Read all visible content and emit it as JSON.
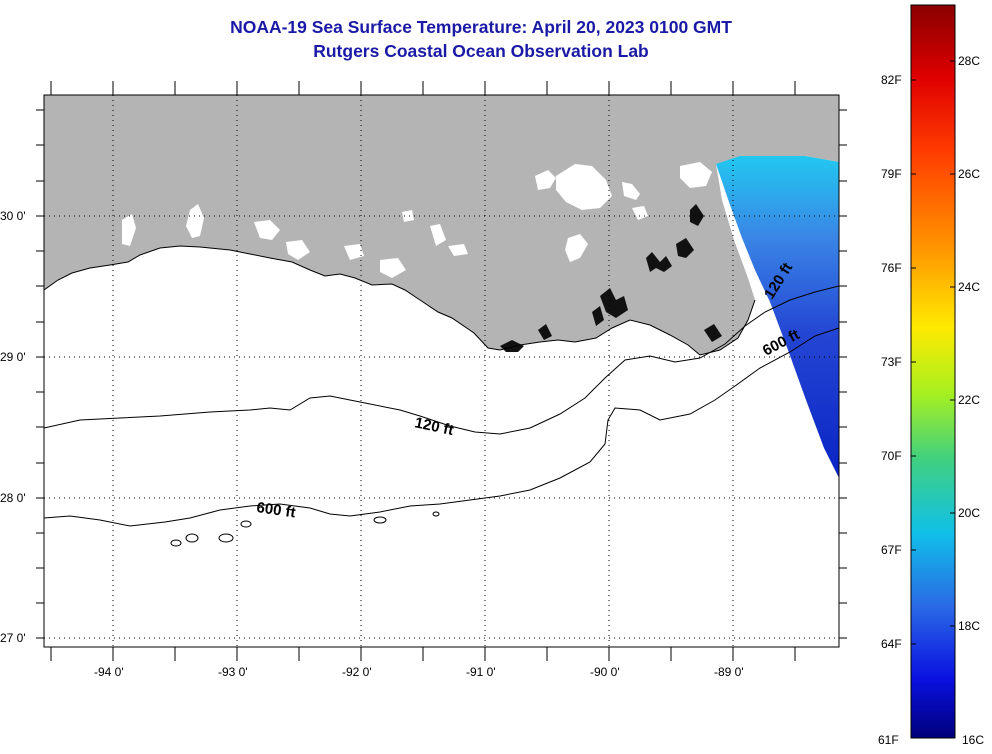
{
  "title": {
    "line1": "NOAA-19 Sea Surface Temperature:  April 20, 2023 0100 GMT",
    "line2": "Rutgers Coastal Ocean Observation Lab"
  },
  "map": {
    "lat_labels": [
      "30 0'",
      "29 0'",
      "28 0'",
      "27 0'"
    ],
    "lon_labels": [
      "-94 0'",
      "-93 0'",
      "-92 0'",
      "-91 0'",
      "-90 0'",
      "-89 0'"
    ],
    "contours": [
      {
        "label": "120 ft"
      },
      {
        "label": "600 ft"
      }
    ],
    "colors": {
      "land": "#b4b4b4",
      "water": "#ffffff"
    }
  },
  "colorbar": {
    "f_labels": [
      "82F",
      "79F",
      "76F",
      "73F",
      "70F",
      "67F",
      "64F",
      "61F"
    ],
    "c_labels": [
      "28C",
      "26C",
      "24C",
      "22C",
      "20C",
      "18C",
      "16C"
    ],
    "range_c": [
      16,
      29.4
    ]
  }
}
